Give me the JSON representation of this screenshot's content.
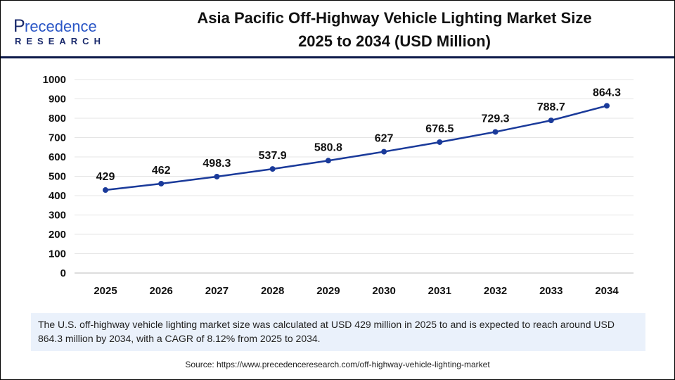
{
  "logo": {
    "name": "Precedence",
    "sub": "RESEARCH"
  },
  "title_line1": "Asia Pacific Off-Highway Vehicle Lighting Market Size",
  "title_line2": "2025 to 2034 (USD Million)",
  "note": "The U.S. off-highway vehicle lighting market size was calculated at USD 429 million in 2025 to and is expected to reach around USD 864.3 million by 2034, with a CAGR of 8.12% from 2025 to 2034.",
  "source": "Source: https://www.precedenceresearch.com/off-highway-vehicle-lighting-market",
  "chart_data": {
    "type": "line",
    "categories": [
      "2025",
      "2026",
      "2027",
      "2028",
      "2029",
      "2030",
      "2031",
      "2032",
      "2033",
      "2034"
    ],
    "values": [
      429,
      462,
      498.3,
      537.9,
      580.8,
      627,
      676.5,
      729.3,
      788.7,
      864.3
    ],
    "labels": [
      "429",
      "462",
      "498.3",
      "537.9",
      "580.8",
      "627",
      "676.5",
      "729.3",
      "788.7",
      "864.3"
    ],
    "ylim": [
      0,
      1000
    ],
    "yticks": [
      0,
      100,
      200,
      300,
      400,
      500,
      600,
      700,
      800,
      900,
      1000
    ],
    "grid": true,
    "color": "#1a3a9a"
  }
}
